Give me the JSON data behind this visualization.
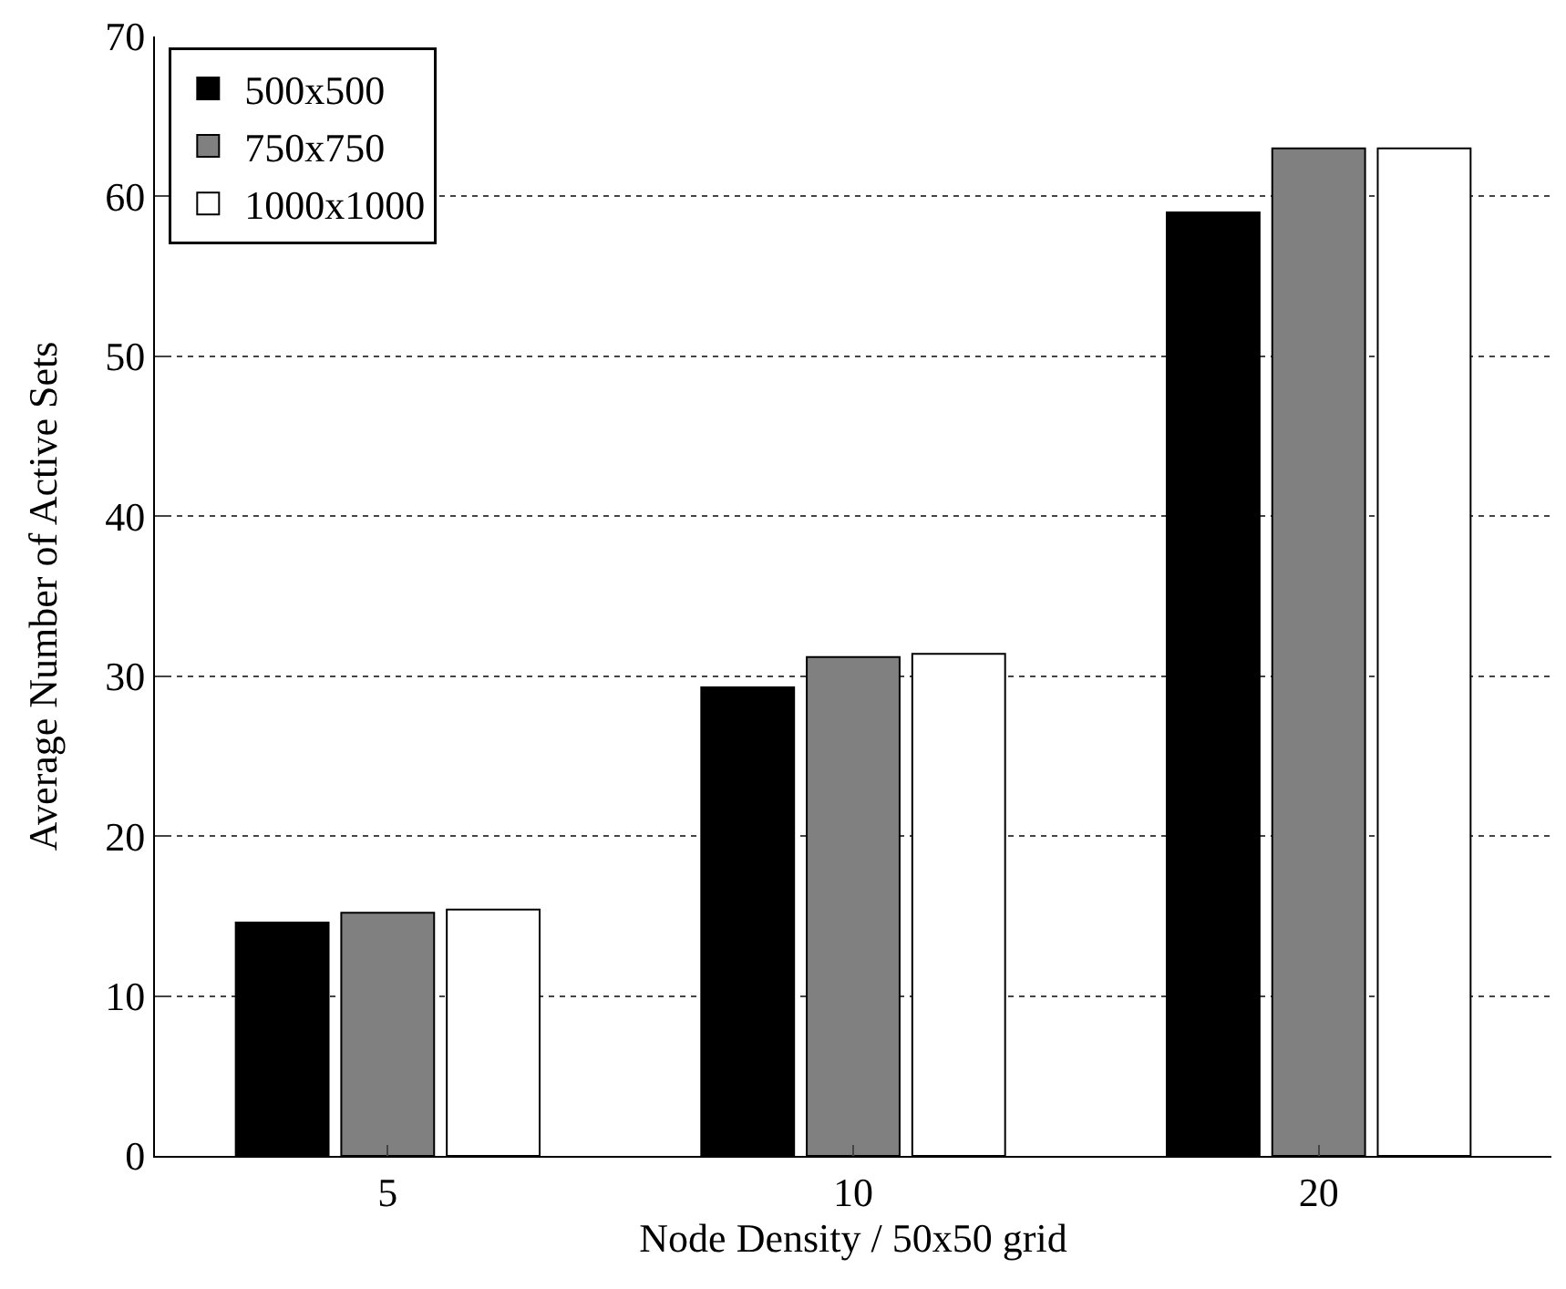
{
  "chart_data": {
    "type": "bar",
    "xlabel": "Node Density / 50x50 grid",
    "ylabel": "Average Number of Active Sets",
    "categories": [
      "5",
      "10",
      "20"
    ],
    "series": [
      {
        "name": "500x500",
        "color": "#000000",
        "values": [
          14.6,
          29.3,
          59
        ]
      },
      {
        "name": "750x750",
        "color": "#808080",
        "values": [
          15.2,
          31.2,
          63
        ]
      },
      {
        "name": "1000x1000",
        "color": "#ffffff",
        "values": [
          15.4,
          31.4,
          63
        ]
      }
    ],
    "ylim": [
      0,
      70
    ],
    "yticks": [
      0,
      10,
      20,
      30,
      40,
      50,
      60,
      70
    ],
    "grid": "y",
    "legend": "top left"
  }
}
